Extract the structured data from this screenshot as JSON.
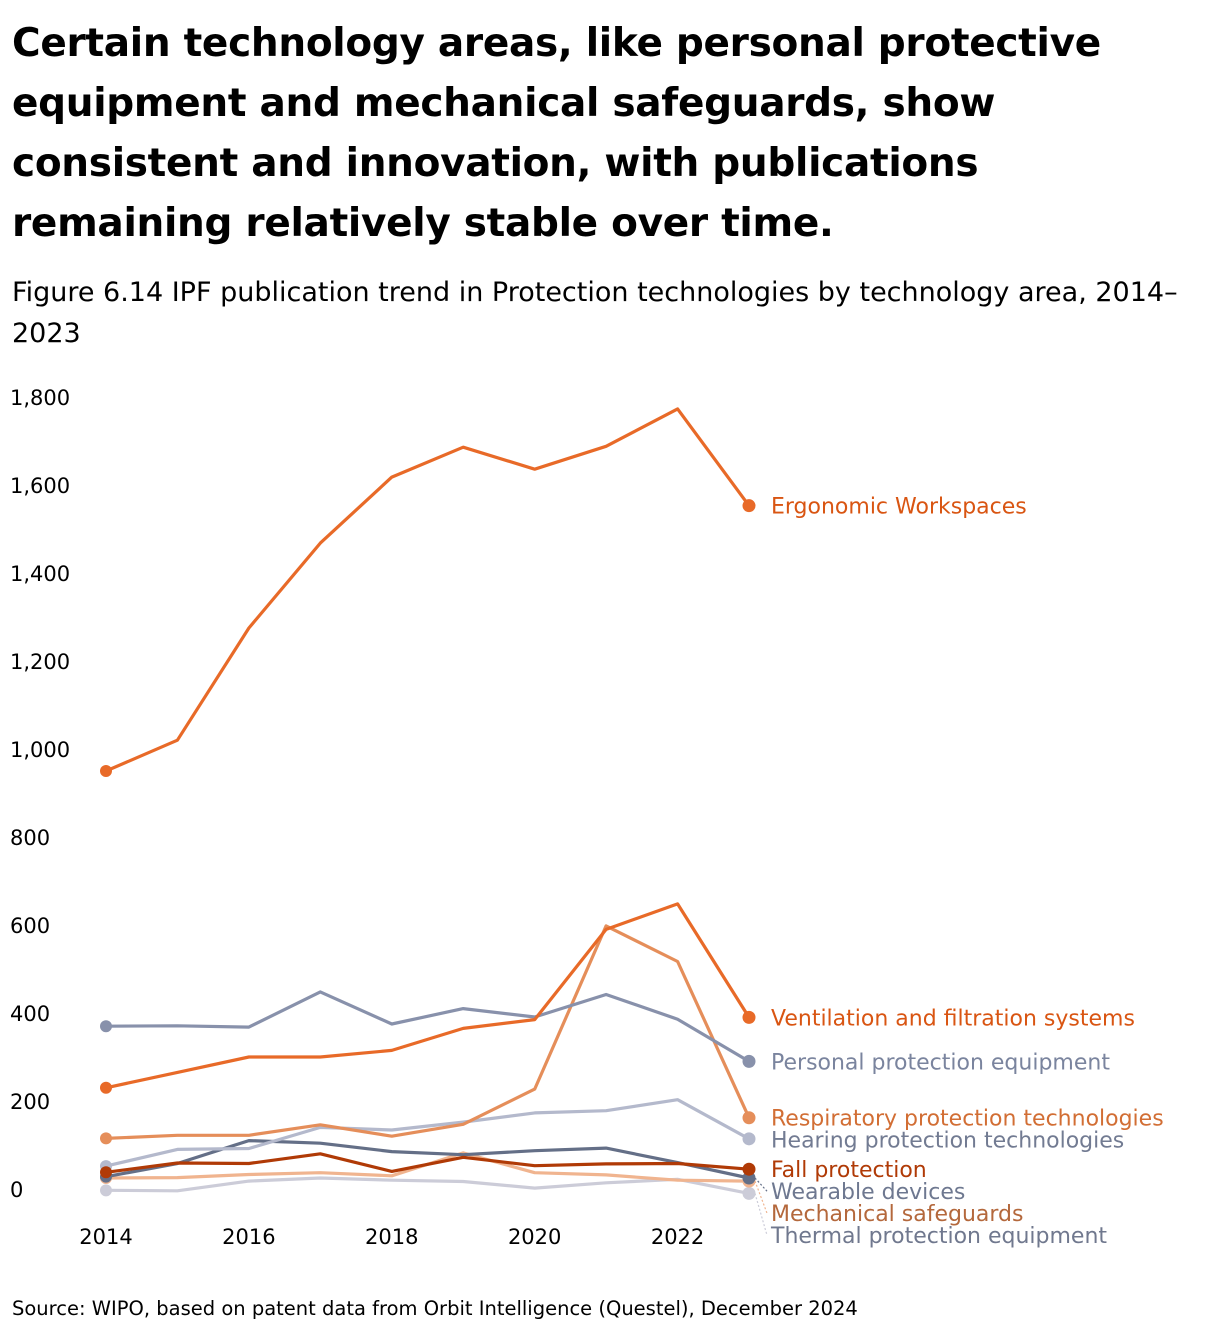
{
  "headline": "Certain technology areas, like personal protective equipment and mechanical safeguards, show consistent and innovation, with publications remaining relatively stable over time.",
  "subtitle": "Figure 6.14 IPF publication trend in Protection technologies by technology area, 2014–2023",
  "source": "Source: WIPO, based on patent data from Orbit Intelligence (Questel), December 2024",
  "chart_data": {
    "type": "line",
    "title": "IPF publication trend in Protection technologies by technology area, 2014–2023",
    "xlabel": "",
    "ylabel": "",
    "x": [
      2014,
      2015,
      2016,
      2017,
      2018,
      2019,
      2020,
      2021,
      2022,
      2023
    ],
    "xticks": [
      2014,
      2016,
      2018,
      2020,
      2022
    ],
    "xtick_labels": [
      "2014",
      "2016",
      "2018",
      "2020",
      "2022"
    ],
    "ylim": [
      0,
      1800
    ],
    "yticks": [
      0,
      200,
      400,
      600,
      800,
      1000,
      1200,
      1400,
      1600,
      1800
    ],
    "ytick_labels": [
      "0",
      "200",
      "400",
      "600",
      "800",
      "1,000",
      "1,200",
      "1,400",
      "1,600",
      "1,800"
    ],
    "grid": false,
    "legend": "direct labels at right end of lines",
    "series": [
      {
        "name": "Thermal protection equipment",
        "color": "#ccccd8",
        "label_color": "#70788e",
        "values": [
          -3,
          -4,
          18,
          25,
          20,
          17,
          2,
          14,
          22,
          -10
        ]
      },
      {
        "name": "Mechanical safeguards",
        "color": "#f0b48f",
        "label_color": "#b4683c",
        "values": [
          25,
          26,
          33,
          37,
          30,
          82,
          37,
          32,
          20,
          18
        ]
      },
      {
        "name": "Wearable devices",
        "color": "#646f87",
        "label_color": "#6e7890",
        "values": [
          28,
          58,
          110,
          104,
          85,
          78,
          87,
          93,
          60,
          25
        ]
      },
      {
        "name": "Hearing protection technologies",
        "color": "#b4b9cc",
        "label_color": "#727b92",
        "values": [
          52,
          90,
          92,
          140,
          134,
          152,
          173,
          178,
          203,
          114
        ]
      },
      {
        "name": "Fall protection",
        "color": "#b03a06",
        "label_color": "#b03a06",
        "values": [
          38,
          59,
          58,
          80,
          40,
          72,
          53,
          57,
          58,
          45
        ]
      },
      {
        "name": "Respiratory protection technologies",
        "color": "#e58e5a",
        "label_color": "#d26e34",
        "values": [
          115,
          122,
          122,
          146,
          120,
          147,
          227,
          598,
          517,
          162
        ]
      },
      {
        "name": "Personal protection equipment",
        "color": "#8891ab",
        "label_color": "#7a849e",
        "values": [
          370,
          371,
          368,
          448,
          375,
          410,
          391,
          442,
          386,
          290
        ]
      },
      {
        "name": "Ventilation and filtration systems",
        "color": "#e86a28",
        "label_color": "#d95512",
        "values": [
          230,
          265,
          300,
          300,
          315,
          365,
          385,
          590,
          648,
          390
        ]
      },
      {
        "name": "Ergonomic Workspaces",
        "color": "#e86a28",
        "label_color": "#d95512",
        "values": [
          950,
          1020,
          1275,
          1468,
          1618,
          1686,
          1636,
          1688,
          1773,
          1553
        ]
      }
    ]
  }
}
